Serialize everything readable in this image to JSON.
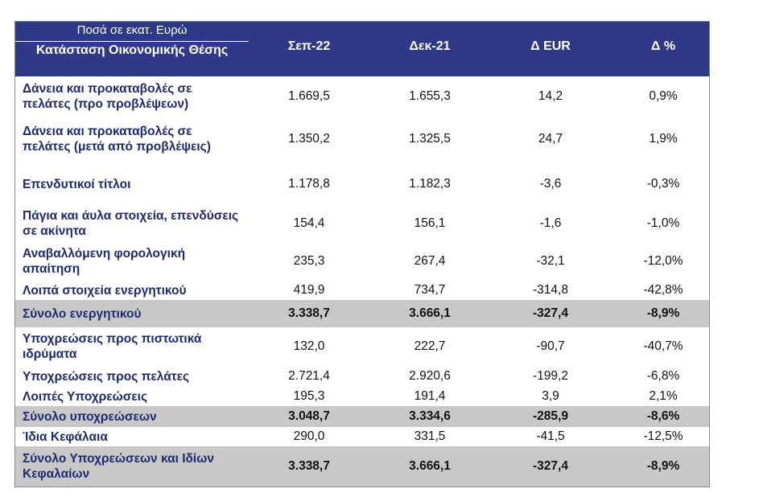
{
  "table": {
    "units_label": "Ποσά σε εκατ. Ευρώ",
    "title": "Κατάσταση Οικονομικής Θέσης",
    "columns": [
      "Σεπ-22",
      "Δεκ-21",
      "Δ EUR",
      "Δ %"
    ],
    "rows": [
      {
        "label": "Δάνεια και προκαταβολές σε πελάτες (προ προβλέψεων)",
        "values": [
          "1.669,5",
          "1.655,3",
          "14,2",
          "0,9%"
        ],
        "total": false
      },
      {
        "label": "Δάνεια και προκαταβολές σε πελάτες (μετά από προβλέψεις)",
        "values": [
          "1.350,2",
          "1.325,5",
          "24,7",
          "1,9%"
        ],
        "total": false
      },
      {
        "label": "Επενδυτικοί τίτλοι",
        "values": [
          "1.178,8",
          "1.182,3",
          "-3,6",
          "-0,3%"
        ],
        "total": false
      },
      {
        "label": "Πάγια και άυλα στοιχεία, επενδύσεις σε ακίνητα",
        "values": [
          "154,4",
          "156,1",
          "-1,6",
          "-1,0%"
        ],
        "total": false
      },
      {
        "label": "Αναβαλλόμενη φορολογική απαίτηση",
        "values": [
          "235,3",
          "267,4",
          "-32,1",
          "-12,0%"
        ],
        "total": false
      },
      {
        "label": "Λοιπά στοιχεία ενεργητικού",
        "values": [
          "419,9",
          "734,7",
          "-314,8",
          "-42,8%"
        ],
        "total": false
      },
      {
        "label": "Σύνολο ενεργητικού",
        "values": [
          "3.338,7",
          "3.666,1",
          "-327,4",
          "-8,9%"
        ],
        "total": true
      },
      {
        "label": "Υποχρεώσεις προς πιστωτικά ιδρύματα",
        "values": [
          "132,0",
          "222,7",
          "-90,7",
          "-40,7%"
        ],
        "total": false
      },
      {
        "label": "Υποχρεώσεις προς πελάτες",
        "values": [
          "2.721,4",
          "2.920,6",
          "-199,2",
          "-6,8%"
        ],
        "total": false
      },
      {
        "label": "Λοιπές Υποχρεώσεις",
        "values": [
          "195,3",
          "191,4",
          "3,9",
          "2,1%"
        ],
        "total": false
      },
      {
        "label": "Σύνολο υποχρεώσεων",
        "values": [
          "3.048,7",
          "3.334,6",
          "-285,9",
          "-8,6%"
        ],
        "total": true
      },
      {
        "label": "Ίδια Κεφάλαια",
        "values": [
          "290,0",
          "331,5",
          "-41,5",
          "-12,5%"
        ],
        "total": false
      },
      {
        "label": "Σύνολο Υποχρεώσεων και Ιδίων Κεφαλαίων",
        "values": [
          "3.338,7",
          "3.666,1",
          "-327,4",
          "-8,9%"
        ],
        "total": true
      }
    ]
  }
}
